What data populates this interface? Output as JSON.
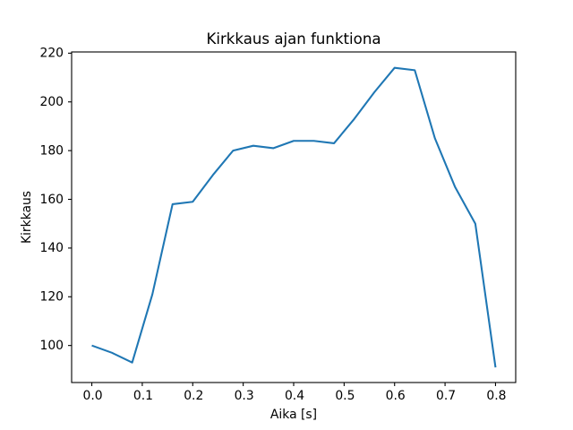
{
  "chart_data": {
    "type": "line",
    "title": "Kirkkaus ajan funktiona",
    "xlabel": "Aika [s]",
    "ylabel": "Kirkkaus",
    "x": [
      0.0,
      0.04,
      0.08,
      0.12,
      0.16,
      0.2,
      0.24,
      0.28,
      0.32,
      0.36,
      0.4,
      0.44,
      0.48,
      0.52,
      0.56,
      0.6,
      0.64,
      0.68,
      0.72,
      0.76,
      0.8
    ],
    "y": [
      100,
      97,
      93,
      121,
      158,
      159,
      170,
      180,
      182,
      181,
      184,
      184,
      183,
      193,
      204,
      214,
      213,
      185,
      165,
      150,
      91
    ],
    "xlim": [
      -0.04,
      0.84
    ],
    "ylim": [
      84.8,
      220.5
    ],
    "xticks": [
      0.0,
      0.1,
      0.2,
      0.3,
      0.4,
      0.5,
      0.6,
      0.7,
      0.8
    ],
    "xtick_labels": [
      "0.0",
      "0.1",
      "0.2",
      "0.3",
      "0.4",
      "0.5",
      "0.6",
      "0.7",
      "0.8"
    ],
    "yticks": [
      100,
      120,
      140,
      160,
      180,
      200,
      220
    ],
    "ytick_labels": [
      "100",
      "120",
      "140",
      "160",
      "180",
      "200",
      "220"
    ],
    "line_color": "#1f77b4",
    "axis_color": "#000000",
    "grid": false,
    "legend_position": "none"
  }
}
